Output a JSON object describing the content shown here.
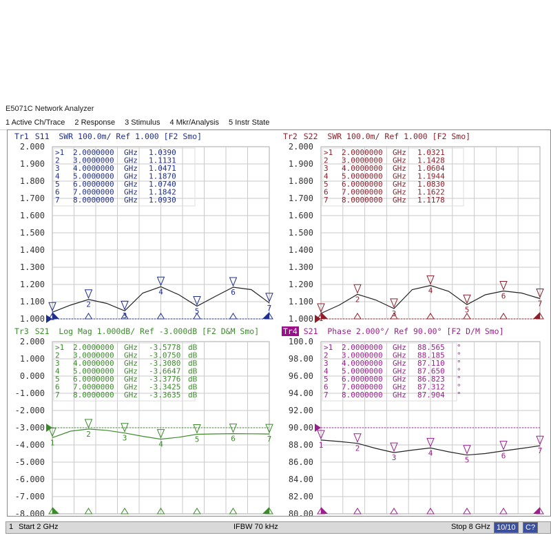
{
  "window": {
    "title": "E5071C Network Analyzer"
  },
  "menu": [
    {
      "label": "1 Active Ch/Trace"
    },
    {
      "label": "2 Response"
    },
    {
      "label": "3 Stimulus"
    },
    {
      "label": "4 Mkr/Analysis"
    },
    {
      "label": "5 Instr State"
    }
  ],
  "colors": {
    "tr1": "#1f2f8c",
    "tr2": "#8c1f2a",
    "tr3": "#3b8a2b",
    "tr4": "#9b1f8c",
    "grid": "#c9c9c9",
    "trace": "#222222"
  },
  "panels": [
    {
      "tag": "Tr1",
      "title": "S11  SWR 100.0m/ Ref 1.000 [F2 Smo]",
      "color": "#1f2f8c",
      "active": false,
      "yticks": [
        "2.000",
        "1.900",
        "1.800",
        "1.700",
        "1.600",
        "1.500",
        "1.400",
        "1.300",
        "1.200",
        "1.100",
        "1.000"
      ],
      "ref": "1.000",
      "markers": [
        {
          "id": ">1",
          "freq": "2.0000000",
          "unit": "GHz",
          "value": "1.0390",
          "vunit": ""
        },
        {
          "id": "2",
          "freq": "3.0000000",
          "unit": "GHz",
          "value": "1.1131",
          "vunit": ""
        },
        {
          "id": "3",
          "freq": "4.0000000",
          "unit": "GHz",
          "value": "1.0471",
          "vunit": ""
        },
        {
          "id": "4",
          "freq": "5.0000000",
          "unit": "GHz",
          "value": "1.1870",
          "vunit": ""
        },
        {
          "id": "5",
          "freq": "6.0000000",
          "unit": "GHz",
          "value": "1.0740",
          "vunit": ""
        },
        {
          "id": "6",
          "freq": "7.0000000",
          "unit": "GHz",
          "value": "1.1842",
          "vunit": ""
        },
        {
          "id": "7",
          "freq": "8.0000000",
          "unit": "GHz",
          "value": "1.0930",
          "vunit": ""
        }
      ]
    },
    {
      "tag": "Tr2",
      "title": "S22  SWR 100.0m/ Ref 1.000 [F2 Smo]",
      "color": "#8c1f2a",
      "active": false,
      "yticks": [
        "2.000",
        "1.900",
        "1.800",
        "1.700",
        "1.600",
        "1.500",
        "1.400",
        "1.300",
        "1.200",
        "1.100",
        "1.000"
      ],
      "ref": "1.000",
      "markers": [
        {
          "id": ">1",
          "freq": "2.0000000",
          "unit": "GHz",
          "value": "1.0321",
          "vunit": ""
        },
        {
          "id": "2",
          "freq": "3.0000000",
          "unit": "GHz",
          "value": "1.1428",
          "vunit": ""
        },
        {
          "id": "3",
          "freq": "4.0000000",
          "unit": "GHz",
          "value": "1.0604",
          "vunit": ""
        },
        {
          "id": "4",
          "freq": "5.0000000",
          "unit": "GHz",
          "value": "1.1944",
          "vunit": ""
        },
        {
          "id": "5",
          "freq": "6.0000000",
          "unit": "GHz",
          "value": "1.0830",
          "vunit": ""
        },
        {
          "id": "6",
          "freq": "7.0000000",
          "unit": "GHz",
          "value": "1.1622",
          "vunit": ""
        },
        {
          "id": "7",
          "freq": "8.0000000",
          "unit": "GHz",
          "value": "1.1178",
          "vunit": ""
        }
      ]
    },
    {
      "tag": "Tr3",
      "title": "S21  Log Mag 1.000dB/ Ref -3.000dB [F2 D&M Smo]",
      "color": "#3b8a2b",
      "active": false,
      "yticks": [
        "2.000",
        "1.000",
        "0.000",
        "-1.000",
        "-2.000",
        "-3.000",
        "-4.000",
        "-5.000",
        "-6.000",
        "-7.000",
        "-8.000"
      ],
      "ref": "-3.000",
      "markers": [
        {
          "id": ">1",
          "freq": "2.0000000",
          "unit": "GHz",
          "value": "-3.5778",
          "vunit": "dB"
        },
        {
          "id": "2",
          "freq": "3.0000000",
          "unit": "GHz",
          "value": "-3.0750",
          "vunit": "dB"
        },
        {
          "id": "3",
          "freq": "4.0000000",
          "unit": "GHz",
          "value": "-3.3080",
          "vunit": "dB"
        },
        {
          "id": "4",
          "freq": "5.0000000",
          "unit": "GHz",
          "value": "-3.6647",
          "vunit": "dB"
        },
        {
          "id": "5",
          "freq": "6.0000000",
          "unit": "GHz",
          "value": "-3.3776",
          "vunit": "dB"
        },
        {
          "id": "6",
          "freq": "7.0000000",
          "unit": "GHz",
          "value": "-3.3425",
          "vunit": "dB"
        },
        {
          "id": "7",
          "freq": "8.0000000",
          "unit": "GHz",
          "value": "-3.3635",
          "vunit": "dB"
        }
      ]
    },
    {
      "tag": "Tr4",
      "title": "S21  Phase 2.000°/ Ref 90.00° [F2 D/M Smo]",
      "color": "#9b1f8c",
      "active": true,
      "yticks": [
        "100.0",
        "98.00",
        "96.00",
        "94.00",
        "92.00",
        "90.00",
        "88.00",
        "86.00",
        "84.00",
        "82.00",
        "80.00"
      ],
      "ref": "90.00",
      "markers": [
        {
          "id": ">1",
          "freq": "2.0000000",
          "unit": "GHz",
          "value": "88.565",
          "vunit": "°"
        },
        {
          "id": "2",
          "freq": "3.0000000",
          "unit": "GHz",
          "value": "88.185",
          "vunit": "°"
        },
        {
          "id": "3",
          "freq": "4.0000000",
          "unit": "GHz",
          "value": "87.110",
          "vunit": "°"
        },
        {
          "id": "4",
          "freq": "5.0000000",
          "unit": "GHz",
          "value": "87.650",
          "vunit": "°"
        },
        {
          "id": "5",
          "freq": "6.0000000",
          "unit": "GHz",
          "value": "86.823",
          "vunit": "°"
        },
        {
          "id": "6",
          "freq": "7.0000000",
          "unit": "GHz",
          "value": "87.312",
          "vunit": "°"
        },
        {
          "id": "7",
          "freq": "8.0000000",
          "unit": "GHz",
          "value": "87.904",
          "vunit": "°"
        }
      ]
    }
  ],
  "chart_data": [
    {
      "type": "line",
      "series": [
        {
          "name": "S11",
          "x": [
            2,
            2.5,
            3,
            3.5,
            4,
            4.5,
            5,
            5.5,
            6,
            6.5,
            7,
            7.5,
            8
          ],
          "y": [
            1.039,
            1.08,
            1.113,
            1.09,
            1.047,
            1.15,
            1.187,
            1.14,
            1.074,
            1.13,
            1.184,
            1.17,
            1.093
          ]
        }
      ],
      "xlim": [
        2,
        8
      ],
      "ylim": [
        1.0,
        2.0
      ]
    },
    {
      "type": "line",
      "series": [
        {
          "name": "S22",
          "x": [
            2,
            2.5,
            3,
            3.5,
            4,
            4.5,
            5,
            5.5,
            6,
            6.5,
            7,
            7.5,
            8
          ],
          "y": [
            1.032,
            1.08,
            1.143,
            1.11,
            1.06,
            1.17,
            1.194,
            1.16,
            1.083,
            1.14,
            1.162,
            1.15,
            1.118
          ]
        }
      ],
      "xlim": [
        2,
        8
      ],
      "ylim": [
        1.0,
        2.0
      ]
    },
    {
      "type": "line",
      "series": [
        {
          "name": "S21",
          "x": [
            2,
            2.5,
            3,
            3.5,
            4,
            4.5,
            5,
            5.5,
            6,
            6.5,
            7,
            7.5,
            8
          ],
          "y": [
            -3.578,
            -3.2,
            -3.075,
            -3.15,
            -3.308,
            -3.5,
            -3.665,
            -3.55,
            -3.378,
            -3.36,
            -3.343,
            -3.35,
            -3.364
          ]
        }
      ],
      "xlim": [
        2,
        8
      ],
      "ylim": [
        -8,
        2
      ]
    },
    {
      "type": "line",
      "series": [
        {
          "name": "S21",
          "x": [
            2,
            2.5,
            3,
            3.5,
            4,
            4.5,
            5,
            5.5,
            6,
            6.5,
            7,
            7.5,
            8
          ],
          "y": [
            88.565,
            88.4,
            88.185,
            87.6,
            87.11,
            87.4,
            87.65,
            87.2,
            86.823,
            87.0,
            87.312,
            87.6,
            87.904
          ]
        }
      ],
      "xlim": [
        2,
        8
      ],
      "ylim": [
        80,
        100
      ]
    }
  ],
  "status": {
    "channel": "1",
    "start": "Start 2 GHz",
    "ifbw": "IFBW 70 kHz",
    "stop": "Stop 8 GHz",
    "count": "10/10",
    "mode": "C?"
  }
}
